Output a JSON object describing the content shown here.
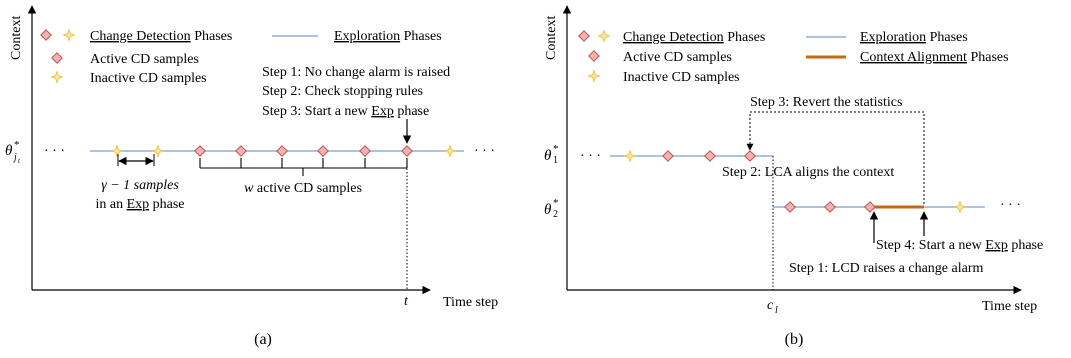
{
  "colors": {
    "exploration_line": "#8fb0d8",
    "alignment_line": "#c46a12",
    "active_marker_fill": "#f2b2b2",
    "active_marker_stroke": "#c0504d",
    "inactive_marker_color": "#f0c24a",
    "axis": "#000000"
  },
  "icons": {
    "active": "diamond-marker-icon",
    "inactive": "four-point-star-marker-icon"
  },
  "panel_a": {
    "y_axis_label": "Context",
    "x_axis_label": "Time step",
    "caption": "(a)",
    "legend": {
      "cd_phases": "Change Detection",
      "cd_phases_suffix": " Phases",
      "exp_phases": "Exploration",
      "exp_phases_suffix": " Phases",
      "active": "Active CD samples",
      "inactive": "Inactive CD samples"
    },
    "steps": [
      "Step 1: No change alarm is raised",
      "Step 2: Check stopping rules",
      "Step 3: Start a new "
    ],
    "step3_emph": "Exp",
    "step3_suffix": " phase",
    "context_label": "θ",
    "context_sup": "*",
    "context_sub": "j",
    "context_subsub": "t",
    "ellipsis": "· · ·",
    "gamma_label_1": "γ − 1 samples",
    "gamma_label_2": "in an ",
    "gamma_label_emph": "Exp",
    "gamma_label_suffix": " phase",
    "w_label_var": "w",
    "w_label_rest": " active CD samples",
    "t_label": "t"
  },
  "panel_b": {
    "y_axis_label": "Context",
    "x_axis_label": "Time step",
    "caption": "(b)",
    "legend": {
      "cd_phases": "Change Detection",
      "cd_phases_suffix": " Phases",
      "exp_phases": "Exploration",
      "exp_phases_suffix": " Phases",
      "align_phases": "Context Alignment",
      "align_phases_suffix": " Phases",
      "active": "Active CD samples",
      "inactive": "Inactive CD samples"
    },
    "theta1": "θ",
    "theta1_sub": "1",
    "theta2": "θ",
    "theta2_sub": "2",
    "sup": "*",
    "ellipsis": "· · ·",
    "step3": "Step 3: Revert the statistics",
    "step2": "Step 2: LCA aligns the context",
    "step4_prefix": "Step 4: Start a new ",
    "step4_emph": "Exp",
    "step4_suffix": " phase",
    "step1": "Step 1: LCD raises a change alarm",
    "cl_label": "c",
    "cl_sub": "l"
  }
}
